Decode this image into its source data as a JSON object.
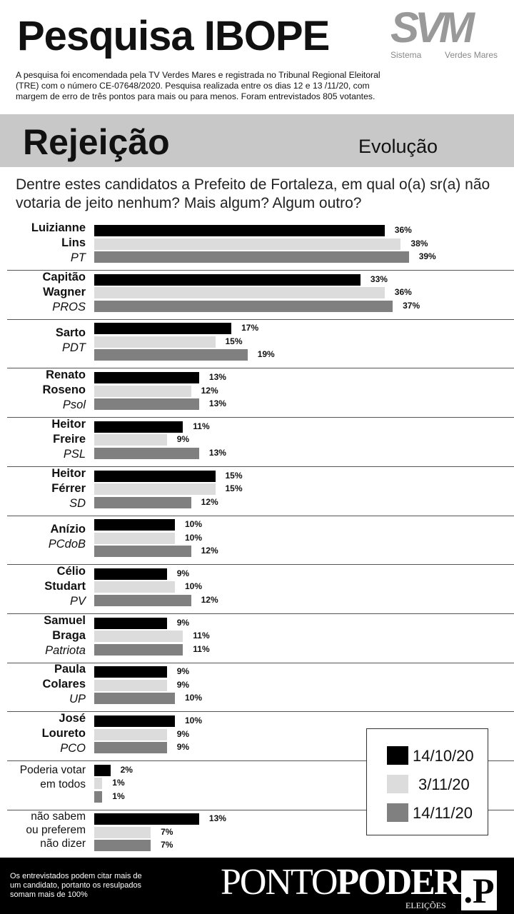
{
  "header": {
    "title": "Pesquisa IBOPE",
    "logo_text": "SVM",
    "logo_left": "Sistema",
    "logo_right": "Verdes Mares",
    "intro": "A pesquisa foi encomendada pela TV Verdes Mares e registrada no Tribunal Regional Eleitoral (TRE) com o número CE-07648/2020. Pesquisa realizada entre os dias 12 e 13 /11/20, com margem de erro de três pontos para mais ou para menos. Foram entrevistados 805 votantes."
  },
  "section": {
    "title": "Rejeição",
    "subtitle": "Evolução"
  },
  "chart_data": {
    "type": "bar",
    "title": "Rejeição",
    "question": "Dentre estes candidatos a Prefeito de Fortaleza, em qual o(a) sr(a) não votaria de jeito nenhum? Mais algum? Algum outro?",
    "categories": [
      {
        "name": [
          "Luizianne",
          "Lins"
        ],
        "party": "PT"
      },
      {
        "name": [
          "Capitão",
          "Wagner"
        ],
        "party": "PROS"
      },
      {
        "name": [
          "Sarto"
        ],
        "party": "PDT"
      },
      {
        "name": [
          "Renato",
          "Roseno"
        ],
        "party": "Psol"
      },
      {
        "name": [
          "Heitor",
          "Freire"
        ],
        "party": "PSL"
      },
      {
        "name": [
          "Heitor",
          "Férrer"
        ],
        "party": "SD"
      },
      {
        "name": [
          "Anízio"
        ],
        "party": "PCdoB"
      },
      {
        "name": [
          "Célio",
          "Studart"
        ],
        "party": "PV"
      },
      {
        "name": [
          "Samuel",
          "Braga"
        ],
        "party": "Patriota"
      },
      {
        "name": [
          "Paula",
          "Colares"
        ],
        "party": "UP"
      },
      {
        "name": [
          "José",
          "Loureto"
        ],
        "party": "PCO"
      },
      {
        "name": [
          "Poderia votar",
          "em todos"
        ],
        "party": "",
        "plain": true
      },
      {
        "name": [
          "não sabem",
          "ou preferem",
          "não dizer"
        ],
        "party": "",
        "plain": true
      }
    ],
    "series": [
      {
        "name": "14/10/20",
        "color": "#000000",
        "values": [
          36,
          33,
          17,
          13,
          11,
          15,
          10,
          9,
          9,
          9,
          10,
          2,
          13
        ]
      },
      {
        "name": "3/11/20",
        "color": "#dcdcdc",
        "values": [
          38,
          36,
          15,
          12,
          9,
          15,
          10,
          10,
          11,
          9,
          9,
          1,
          7
        ]
      },
      {
        "name": "14/11/20",
        "color": "#808080",
        "values": [
          39,
          37,
          19,
          13,
          13,
          12,
          12,
          12,
          11,
          10,
          9,
          1,
          7
        ]
      }
    ],
    "unit": "%",
    "xlim": [
      0,
      40
    ],
    "legend": "bottom-right"
  },
  "footer": {
    "note": "Os entrevistados podem citar mais de um candidato, portanto os resulpados somam mais de 100%",
    "brand_light": "PONTO",
    "brand_bold": "PODER",
    "brand_sub": "ELEIÇÕES",
    "brand_mark": ".P"
  }
}
